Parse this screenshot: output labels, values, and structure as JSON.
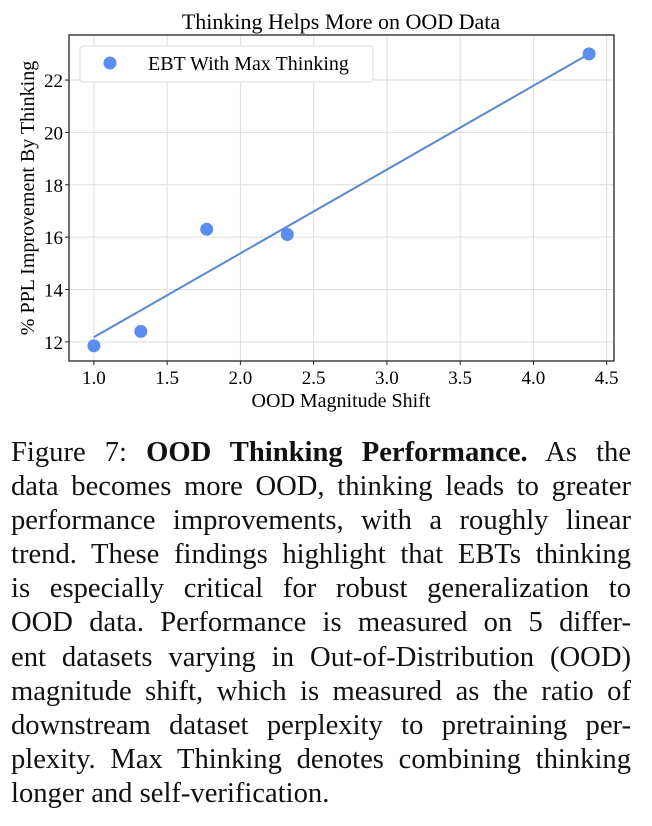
{
  "chart_data": {
    "type": "scatter",
    "title": "Thinking Helps More on OOD Data",
    "xlabel": "OOD Magnitude Shift",
    "ylabel": "% PPL Improvement By Thinking",
    "xlim": [
      0.83,
      4.55
    ],
    "ylim": [
      11.27,
      23.72
    ],
    "xticks": [
      "1.0",
      "1.5",
      "2.0",
      "2.5",
      "3.0",
      "3.5",
      "4.0",
      "4.5"
    ],
    "yticks": [
      "12",
      "14",
      "16",
      "18",
      "20",
      "22"
    ],
    "grid": true,
    "legend_position": "top-left",
    "series": [
      {
        "name": "EBT With Max Thinking",
        "color": "#5b8def",
        "x": [
          1.0,
          1.32,
          1.77,
          2.32,
          4.38
        ],
        "y": [
          11.85,
          12.4,
          16.3,
          16.1,
          23.0
        ]
      }
    ],
    "fit_line": {
      "color": "#5a86d4",
      "x": [
        1.0,
        4.38
      ],
      "y": [
        12.18,
        23.0
      ]
    }
  },
  "caption": {
    "label": "Figure 7:",
    "bold_title": "OOD Thinking Performance.",
    "first_line_rest": "As the",
    "lines": [
      "data becomes more OOD, thinking leads to greater",
      "performance improvements, with a roughly linear",
      "trend. These findings highlight that EBTs thinking",
      "is especially critical for robust generalization to",
      "OOD data. Performance is measured on 5 differ-",
      "ent datasets varying in Out-of-Distribution (OOD)",
      "magnitude shift, which is measured as the ratio of",
      "downstream dataset perplexity to pretraining per-",
      "plexity. Max Thinking denotes combining thinking",
      "longer and self-verification."
    ]
  }
}
